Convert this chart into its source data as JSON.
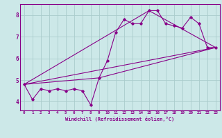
{
  "xlabel": "Windchill (Refroidissement éolien,°C)",
  "background_color": "#cce8e8",
  "grid_color": "#aacccc",
  "line_color": "#880088",
  "xlim": [
    -0.5,
    23.5
  ],
  "ylim": [
    3.6,
    8.5
  ],
  "yticks": [
    4,
    5,
    6,
    7,
    8
  ],
  "xticks": [
    0,
    1,
    2,
    3,
    4,
    5,
    6,
    7,
    8,
    9,
    10,
    11,
    12,
    13,
    14,
    15,
    16,
    17,
    18,
    19,
    20,
    21,
    22,
    23
  ],
  "series1_x": [
    0,
    1,
    2,
    3,
    4,
    5,
    6,
    7,
    8,
    9,
    10,
    11,
    12,
    13,
    14,
    15,
    16,
    17,
    18,
    19,
    20,
    21,
    22,
    23
  ],
  "series1_y": [
    4.8,
    4.1,
    4.6,
    4.5,
    4.6,
    4.5,
    4.6,
    4.5,
    3.85,
    5.1,
    5.9,
    7.2,
    7.8,
    7.6,
    7.6,
    8.2,
    8.2,
    7.6,
    7.5,
    7.4,
    7.9,
    7.6,
    6.5,
    6.5
  ],
  "series2_x": [
    0,
    23
  ],
  "series2_y": [
    4.8,
    6.5
  ],
  "series3_x": [
    0,
    9,
    23
  ],
  "series3_y": [
    4.8,
    5.1,
    6.5
  ],
  "series4_x": [
    0,
    15,
    23
  ],
  "series4_y": [
    4.8,
    8.2,
    6.5
  ]
}
